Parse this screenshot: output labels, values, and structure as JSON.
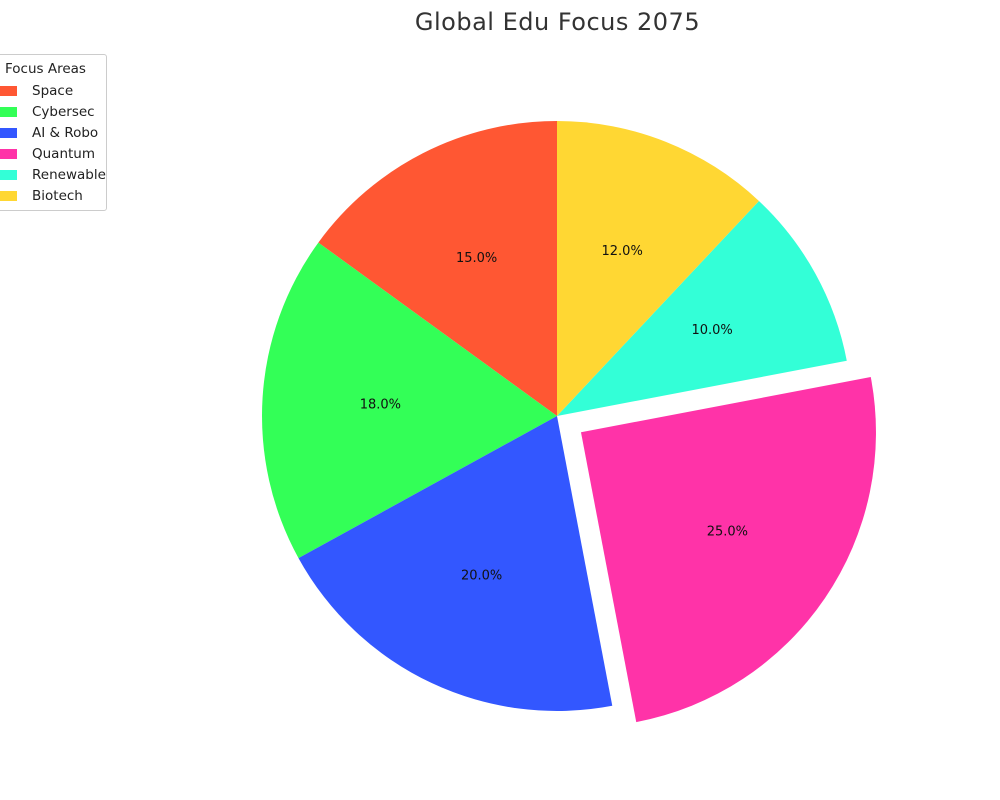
{
  "chart_data": {
    "type": "pie",
    "title": "Global Edu Focus 2075",
    "legend_title": "Focus Areas",
    "legend_placement": "top-left",
    "start_angle_deg": 90,
    "direction": "counterclockwise",
    "slices": [
      {
        "label": "Space",
        "value": 15.0,
        "display": "15.0%",
        "color": "#FF5733",
        "exploded": false
      },
      {
        "label": "Cybersec",
        "value": 18.0,
        "display": "18.0%",
        "color": "#33FF57",
        "exploded": false
      },
      {
        "label": "AI & Robo",
        "value": 20.0,
        "display": "20.0%",
        "color": "#3357FF",
        "exploded": false
      },
      {
        "label": "Quantum",
        "value": 25.0,
        "display": "25.0%",
        "color": "#FF33A8",
        "exploded": true
      },
      {
        "label": "Renewable",
        "value": 10.0,
        "display": "10.0%",
        "color": "#33FFD7",
        "exploded": false
      },
      {
        "label": "Biotech",
        "value": 12.0,
        "display": "12.0%",
        "color": "#FFD733",
        "exploded": false
      }
    ]
  }
}
